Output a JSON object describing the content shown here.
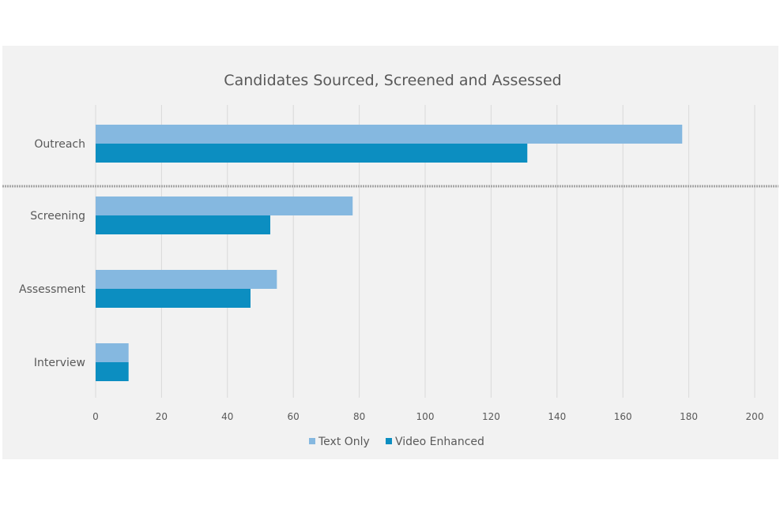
{
  "chart_data": {
    "type": "bar",
    "orientation": "horizontal",
    "title": "Candidates Sourced, Screened and Assessed",
    "categories": [
      "Outreach",
      "Screening",
      "Assessment",
      "Interview"
    ],
    "series": [
      {
        "name": "Text Only",
        "color": "#85b8e0",
        "values": [
          178,
          78,
          55,
          10
        ]
      },
      {
        "name": "Video Enhanced",
        "color": "#0c8ec1",
        "values": [
          131,
          53,
          47,
          10
        ]
      }
    ],
    "xlim": [
      0,
      200
    ],
    "xticks": [
      "0",
      "20",
      "40",
      "60",
      "80",
      "100",
      "120",
      "140",
      "160",
      "180",
      "200"
    ],
    "grid": true,
    "legend_position": "bottom",
    "axis_break": "between Outreach and Screening"
  }
}
